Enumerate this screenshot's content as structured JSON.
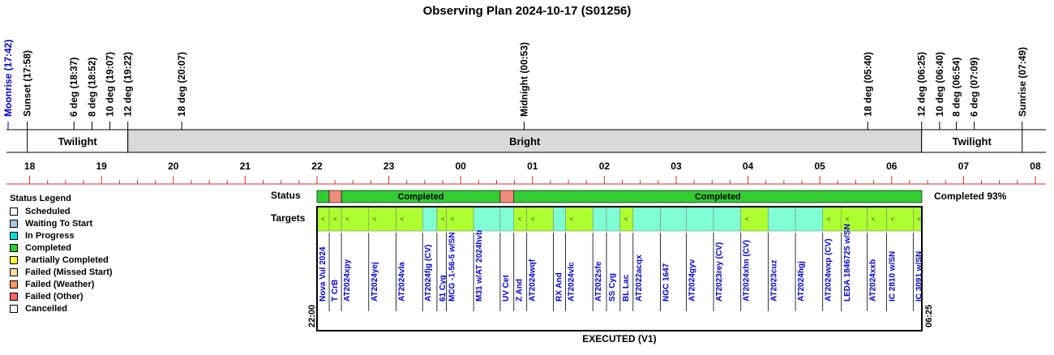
{
  "title": "Observing Plan 2024-10-17 (S01256)",
  "events": [
    {
      "label": "Moonrise (17:42)",
      "hour": 17.7,
      "color": "#0000cc"
    },
    {
      "label": "Sunset (17:58)",
      "hour": 17.967,
      "color": "#000000"
    },
    {
      "label": "6 deg (18:37)",
      "hour": 18.617,
      "color": "#000000"
    },
    {
      "label": "8 deg (18:52)",
      "hour": 18.867,
      "color": "#000000"
    },
    {
      "label": "10 deg (19:07)",
      "hour": 19.117,
      "color": "#000000"
    },
    {
      "label": "12 deg (19:22)",
      "hour": 19.367,
      "color": "#000000"
    },
    {
      "label": "18 deg (20:07)",
      "hour": 20.117,
      "color": "#000000"
    },
    {
      "label": "Midnight (00:53)",
      "hour": 24.883,
      "color": "#000000"
    },
    {
      "label": "18 deg (05:40)",
      "hour": 29.667,
      "color": "#000000"
    },
    {
      "label": "12 deg (06:25)",
      "hour": 30.417,
      "color": "#000000"
    },
    {
      "label": "10 deg (06:40)",
      "hour": 30.667,
      "color": "#000000"
    },
    {
      "label": "8 deg (06:54)",
      "hour": 30.9,
      "color": "#000000"
    },
    {
      "label": "6 deg (07:09)",
      "hour": 31.15,
      "color": "#000000"
    },
    {
      "label": "Sunrise (07:49)",
      "hour": 31.817,
      "color": "#000000"
    }
  ],
  "bands": [
    {
      "label": "Twilight",
      "start": 17.967,
      "end": 19.367,
      "fill": "#ffffff"
    },
    {
      "label": "Bright",
      "start": 19.367,
      "end": 30.417,
      "fill": "#d9d9d9"
    },
    {
      "label": "Twilight",
      "start": 30.417,
      "end": 31.817,
      "fill": "#ffffff"
    }
  ],
  "hour_ticks": [
    "18",
    "19",
    "20",
    "21",
    "22",
    "23",
    "00",
    "01",
    "02",
    "03",
    "04",
    "05",
    "06",
    "07",
    "08"
  ],
  "legend": {
    "title": "Status Legend",
    "items": [
      {
        "label": "Scheduled",
        "color": "#ffffff"
      },
      {
        "label": "Waiting To Start",
        "color": "#a6cbe0"
      },
      {
        "label": "In Progress",
        "color": "#00e0e0"
      },
      {
        "label": "Completed",
        "color": "#33cc33"
      },
      {
        "label": "Partially Completed",
        "color": "#ffff33"
      },
      {
        "label": "Failed (Missed Start)",
        "color": "#ffd9a6"
      },
      {
        "label": "Failed (Weather)",
        "color": "#ff9966"
      },
      {
        "label": "Failed (Other)",
        "color": "#ff6666"
      },
      {
        "label": "Cancelled",
        "color": "#ffffff"
      }
    ]
  },
  "status_label": "Status",
  "targets_label": "Targets",
  "status_summary": "Completed 93%",
  "colors": {
    "completed": "#33cc33",
    "failed_weather": "#f28c7d",
    "target_lime": "#adff2f",
    "target_aqua": "#7fffd4",
    "link_blue": "#0000cc"
  },
  "status_segments": [
    {
      "label": "",
      "start": 22.0,
      "end": 22.17,
      "status": "completed"
    },
    {
      "label": "",
      "start": 22.17,
      "end": 22.34,
      "status": "failed_weather"
    },
    {
      "label": "Completed",
      "start": 22.34,
      "end": 24.55,
      "status": "completed"
    },
    {
      "label": "",
      "start": 24.55,
      "end": 24.74,
      "status": "failed_weather"
    },
    {
      "label": "Completed",
      "start": 24.74,
      "end": 30.42,
      "status": "completed"
    }
  ],
  "targets": [
    {
      "name": "Nova Vul 2024",
      "start": 22.0,
      "end": 22.17,
      "color": "lime"
    },
    {
      "name": "T CrB",
      "start": 22.17,
      "end": 22.34,
      "color": "lime"
    },
    {
      "name": "AT2024xpy",
      "start": 22.34,
      "end": 22.72,
      "color": "lime"
    },
    {
      "name": "AT2024yej",
      "start": 22.72,
      "end": 23.1,
      "color": "lime"
    },
    {
      "name": "AT2024vla",
      "start": 23.1,
      "end": 23.47,
      "color": "lime"
    },
    {
      "name": "AT2024fjg (CV)",
      "start": 23.47,
      "end": 23.67,
      "color": "aqua"
    },
    {
      "name": "61 Cyg",
      "start": 23.67,
      "end": 23.8,
      "color": "lime"
    },
    {
      "name": "MCG -1-56-5 w/SN",
      "start": 23.8,
      "end": 24.18,
      "color": "lime"
    },
    {
      "name": "M31 w/AT 2024hvb",
      "start": 24.18,
      "end": 24.55,
      "color": "aqua"
    },
    {
      "name": "UV Cet",
      "start": 24.55,
      "end": 24.74,
      "color": "aqua"
    },
    {
      "name": "Z And",
      "start": 24.74,
      "end": 24.92,
      "color": "lime"
    },
    {
      "name": "AT2024wqf",
      "start": 24.92,
      "end": 25.29,
      "color": "lime"
    },
    {
      "name": "RX And",
      "start": 25.29,
      "end": 25.46,
      "color": "aqua"
    },
    {
      "name": "AT2024vlc",
      "start": 25.46,
      "end": 25.84,
      "color": "lime"
    },
    {
      "name": "AT2022sfe",
      "start": 25.84,
      "end": 26.03,
      "color": "aqua"
    },
    {
      "name": "SS Cyg",
      "start": 26.03,
      "end": 26.22,
      "color": "aqua"
    },
    {
      "name": "BL Lac",
      "start": 26.22,
      "end": 26.4,
      "color": "lime"
    },
    {
      "name": "AT2022acqx",
      "start": 26.4,
      "end": 26.78,
      "color": "aqua"
    },
    {
      "name": "NGC 1647",
      "start": 26.78,
      "end": 27.14,
      "color": "aqua"
    },
    {
      "name": "AT2024gyv",
      "start": 27.14,
      "end": 27.52,
      "color": "aqua"
    },
    {
      "name": "AT2023rey (CV)",
      "start": 27.52,
      "end": 27.9,
      "color": "aqua"
    },
    {
      "name": "AT2024xhn (CV)",
      "start": 27.9,
      "end": 28.28,
      "color": "lime"
    },
    {
      "name": "AT2023cuz",
      "start": 28.28,
      "end": 28.66,
      "color": "aqua"
    },
    {
      "name": "AT2024hgj",
      "start": 28.66,
      "end": 29.04,
      "color": "aqua"
    },
    {
      "name": "AT2024wxp (CV)",
      "start": 29.04,
      "end": 29.3,
      "color": "lime"
    },
    {
      "name": "LEDA 1846725 w/SN",
      "start": 29.3,
      "end": 29.66,
      "color": "lime"
    },
    {
      "name": "AT2024xxb",
      "start": 29.66,
      "end": 29.93,
      "color": "lime"
    },
    {
      "name": "IC 2810 w/SN",
      "start": 29.93,
      "end": 30.3,
      "color": "lime"
    },
    {
      "name": "IC 3091 w/SN",
      "start": 30.3,
      "end": 30.42,
      "color": "lime"
    }
  ],
  "target_marker": "<",
  "time_start_label": "22:00",
  "time_end_label": "06:25",
  "executed_label": "EXECUTED (V1)"
}
